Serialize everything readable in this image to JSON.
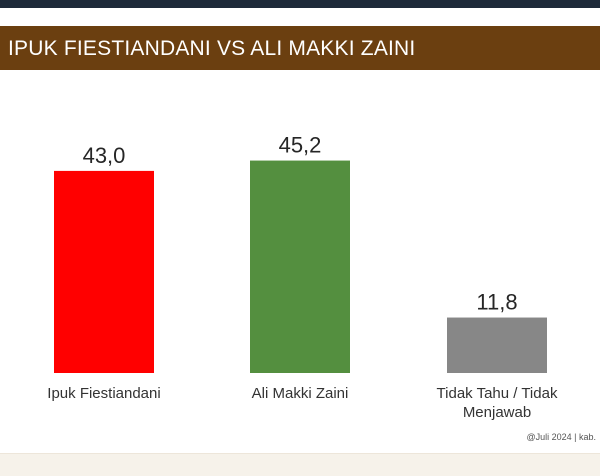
{
  "header": {
    "title": "IPUK FIESTIANDANI VS ALI MAKKI ZAINI"
  },
  "chart_data": {
    "type": "bar",
    "title": "IPUK FIESTIANDANI VS ALI MAKKI ZAINI",
    "categories": [
      "Ipuk Fiestiandani",
      "Ali Makki Zaini",
      "Tidak Tahu / Tidak Menjawab"
    ],
    "category_lines": [
      [
        "Ipuk Fiestiandani"
      ],
      [
        "Ali Makki Zaini"
      ],
      [
        "Tidak Tahu / Tidak",
        "Menjawab"
      ]
    ],
    "values": [
      43.0,
      45.2,
      11.8
    ],
    "value_labels": [
      "43,0",
      "45,2",
      "11,8"
    ],
    "colors": [
      "#ff0000",
      "#548f3f",
      "#878787"
    ],
    "ylim": [
      0,
      50
    ],
    "grid": false,
    "legend": "none",
    "xlabel": "",
    "ylabel": ""
  },
  "footer": {
    "source_note": "@Juli 2024 | kab."
  }
}
